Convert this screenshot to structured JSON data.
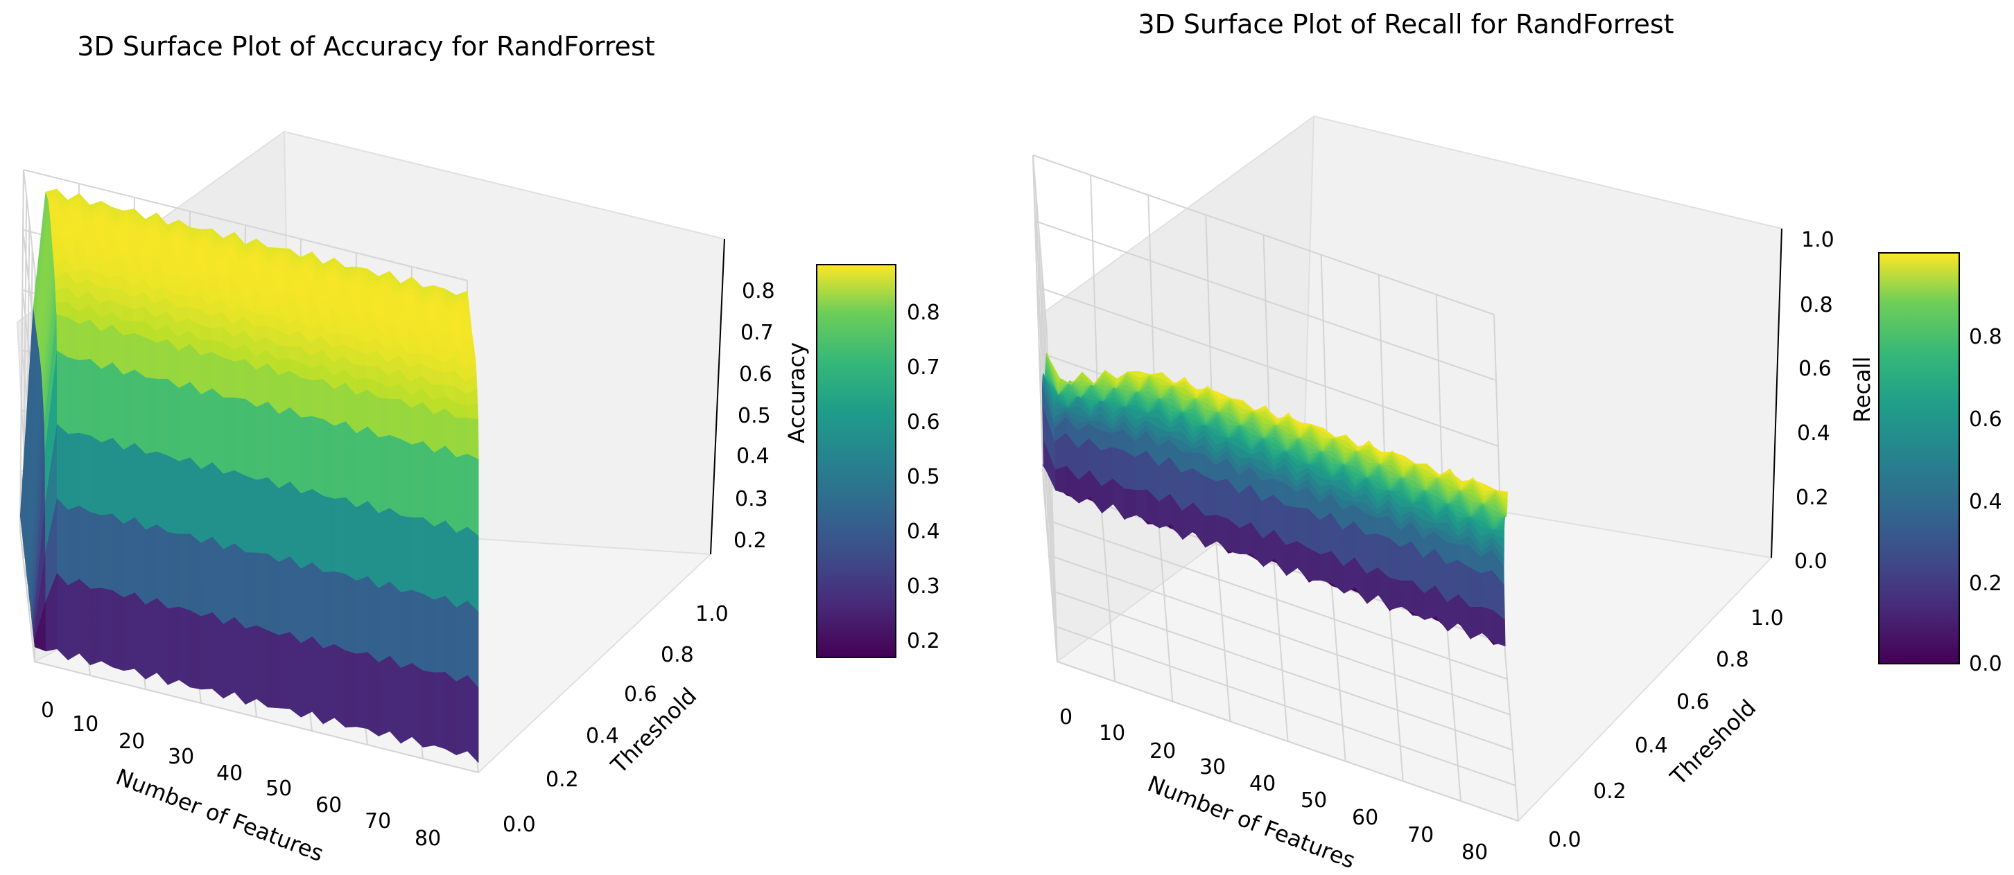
{
  "chart_data": [
    {
      "type": "surface3d",
      "title": "3D Surface Plot of Accuracy for RandForrest",
      "xlabel": "Number of Features",
      "ylabel": "Threshold",
      "zlabel": "Accuracy",
      "colormap": "viridis",
      "xlim": [
        0,
        84
      ],
      "ylim": [
        0.0,
        1.0
      ],
      "zlim": [
        0.15,
        0.89
      ],
      "x_ticks": [
        "0",
        "10",
        "20",
        "30",
        "40",
        "50",
        "60",
        "70",
        "80"
      ],
      "y_ticks": [
        "0.0",
        "0.2",
        "0.4",
        "0.6",
        "0.8",
        "1.0"
      ],
      "z_ticks": [
        "0.2",
        "0.3",
        "0.4",
        "0.5",
        "0.6",
        "0.7",
        "0.8"
      ],
      "colorbar_ticks": [
        "0.2",
        "0.3",
        "0.4",
        "0.5",
        "0.6",
        "0.7",
        "0.8"
      ],
      "colorbar_range": [
        0.17,
        0.89
      ],
      "surface_description": {
        "rise_start_features": 2,
        "accuracy_at_threshold": {
          "threshold": [
            0.0,
            0.2,
            0.4,
            0.6,
            0.8,
            1.0
          ],
          "accuracy": [
            0.18,
            0.8,
            0.87,
            0.88,
            0.88,
            0.86
          ]
        }
      }
    },
    {
      "type": "surface3d",
      "title": "3D Surface Plot of Recall for RandForrest",
      "xlabel": "Number of Features",
      "ylabel": "Threshold",
      "zlabel": "Recall",
      "colormap": "viridis",
      "xlim": [
        0,
        84
      ],
      "ylim": [
        0.0,
        1.0
      ],
      "zlim": [
        0.0,
        1.0
      ],
      "x_ticks": [
        "0",
        "10",
        "20",
        "30",
        "40",
        "50",
        "60",
        "70",
        "80"
      ],
      "y_ticks": [
        "0.0",
        "0.2",
        "0.4",
        "0.6",
        "0.8",
        "1.0"
      ],
      "z_ticks": [
        "0.0",
        "0.2",
        "0.4",
        "0.6",
        "0.8",
        "1.0"
      ],
      "colorbar_ticks": [
        "0.0",
        "0.2",
        "0.4",
        "0.6",
        "0.8"
      ],
      "colorbar_range": [
        0.0,
        1.0
      ],
      "surface_description": {
        "recall_at_threshold": {
          "threshold": [
            0.0,
            0.2,
            0.4,
            0.6,
            0.8,
            0.9,
            1.0
          ],
          "recall": [
            1.0,
            0.85,
            0.7,
            0.55,
            0.35,
            0.05,
            0.0
          ]
        }
      }
    }
  ]
}
